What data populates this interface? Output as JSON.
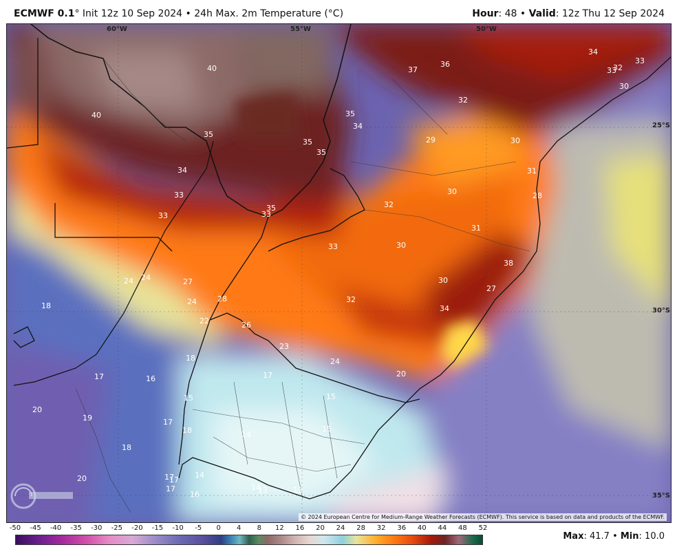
{
  "header": {
    "model": "ECMWF 0.1",
    "title_rest": "° Init 12z 10 Sep 2024 • 24h Max. 2m Temperature (°C)",
    "hour_label": "Hour",
    "hour_value": ": 48 • ",
    "valid_label": "Valid",
    "valid_value": ": 12z Thu 12 Sep 2024"
  },
  "map": {
    "lon_labels": [
      "60°W",
      "55°W",
      "50°W"
    ],
    "lat_labels": [
      "25°S",
      "30°S",
      "35°S"
    ],
    "temperature_labels": [
      "34",
      "32",
      "33",
      "33",
      "30",
      "37",
      "36",
      "40",
      "32",
      "35",
      "34",
      "40",
      "35",
      "35",
      "35",
      "29",
      "30",
      "34",
      "31",
      "33",
      "28",
      "30",
      "32",
      "35",
      "33",
      "33",
      "31",
      "30",
      "33",
      "38",
      "24",
      "24",
      "27",
      "18",
      "30",
      "27",
      "32",
      "28",
      "24",
      "34",
      "22",
      "26",
      "23",
      "24",
      "18",
      "17",
      "16",
      "17",
      "20",
      "15",
      "15",
      "20",
      "19",
      "17",
      "18",
      "14",
      "15",
      "18",
      "17",
      "17",
      "14",
      "20",
      "17",
      "16",
      "14",
      "13",
      "13"
    ],
    "copyright": "© 2024 European Centre for Medium-Range Weather Forecasts (ECMWF). This service is based on data and products of the ECMWF.",
    "logo_text": "WEATHERBELL"
  },
  "colorbar": {
    "ticks": [
      "-50",
      "-45",
      "-40",
      "-35",
      "-30",
      "-25",
      "-20",
      "-15",
      "-10",
      "-5",
      "0",
      "4",
      "8",
      "12",
      "16",
      "20",
      "24",
      "28",
      "32",
      "36",
      "40",
      "44",
      "48",
      "52"
    ]
  },
  "stats": {
    "max_label": "Max",
    "max_value": ": 41.7 • ",
    "min_label": "Min",
    "min_value": ": 10.0"
  }
}
